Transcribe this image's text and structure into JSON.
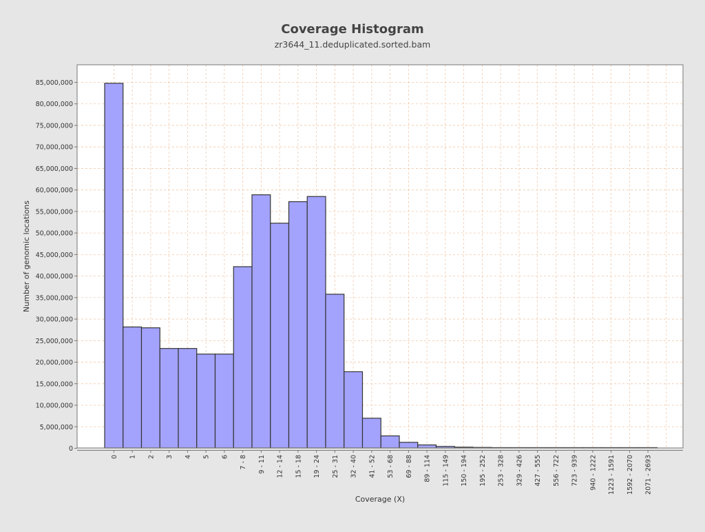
{
  "chart_data": {
    "type": "bar",
    "title": "Coverage Histogram",
    "subtitle": "zr3644_11.deduplicated.sorted.bam",
    "xlabel": "Coverage (X)",
    "ylabel": "Number of genomic locations",
    "ylim": [
      0,
      89000000
    ],
    "yticks": [
      0,
      5000000,
      10000000,
      15000000,
      20000000,
      25000000,
      30000000,
      35000000,
      40000000,
      45000000,
      50000000,
      55000000,
      60000000,
      65000000,
      70000000,
      75000000,
      80000000,
      85000000
    ],
    "ytick_labels": [
      "0",
      "5,000,000",
      "10,000,000",
      "15,000,000",
      "20,000,000",
      "25,000,000",
      "30,000,000",
      "35,000,000",
      "40,000,000",
      "45,000,000",
      "50,000,000",
      "55,000,000",
      "60,000,000",
      "65,000,000",
      "70,000,000",
      "75,000,000",
      "80,000,000",
      "85,000,000"
    ],
    "categories": [
      "0",
      "1",
      "2",
      "3",
      "4",
      "5",
      "6",
      "7 - 8",
      "9 - 11",
      "12 - 14",
      "15 - 18",
      "19 - 24",
      "25 - 31",
      "32 - 40",
      "41 - 52",
      "53 - 68",
      "69 - 88",
      "89 - 114",
      "115 - 149",
      "150 - 194",
      "195 - 252",
      "253 - 328",
      "329 - 426",
      "427 - 555",
      "556 - 722",
      "723 - 939",
      "940 - 1222",
      "1223 - 1591",
      "1592 - 2070",
      "2071 - 2693"
    ],
    "values": [
      84700000,
      28100000,
      27900000,
      23100000,
      23100000,
      21800000,
      21800000,
      42100000,
      58800000,
      52200000,
      57200000,
      58400000,
      35700000,
      17700000,
      6900000,
      2800000,
      1300000,
      700000,
      350000,
      180000,
      120000,
      60000,
      30000,
      15000,
      8000,
      4000,
      2000,
      1000,
      500,
      200
    ],
    "grid": true,
    "legend": "none",
    "colors": {
      "background": "#e6e6e6",
      "plot_background": "#ffffff",
      "bar_fill": "#a3a3fd",
      "bar_stroke": "#333333",
      "grid": "#f0c8a8",
      "text": "#333333",
      "title": "#444444"
    }
  }
}
